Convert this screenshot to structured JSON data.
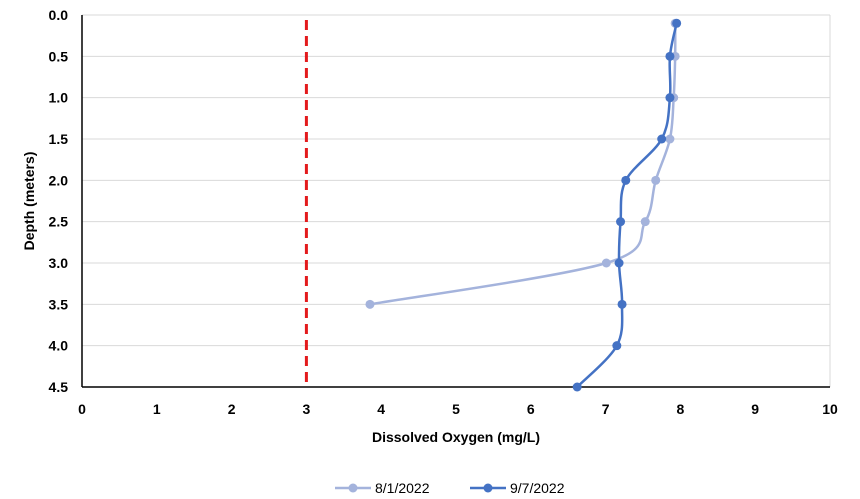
{
  "chart_data": {
    "type": "line",
    "xlabel": "Dissolved Oxygen (mg/L)",
    "ylabel": "Depth (meters)",
    "xlim": [
      0,
      10
    ],
    "ylim": [
      0,
      4.5
    ],
    "y_inverted": true,
    "x_ticks": [
      "0",
      "1",
      "2",
      "3",
      "4",
      "5",
      "6",
      "7",
      "8",
      "9",
      "10"
    ],
    "y_ticks": [
      "0.0",
      "0.5",
      "1.0",
      "1.5",
      "2.0",
      "2.5",
      "3.0",
      "3.5",
      "4.0",
      "4.5"
    ],
    "grid": "horizontal",
    "legend_position": "bottom",
    "reference_line": {
      "x": 3,
      "color": "#e31a1c",
      "style": "dashed"
    },
    "series": [
      {
        "name": "8/1/2022",
        "color": "#a4b3dc",
        "points": [
          {
            "x": 7.93,
            "y": 0.1
          },
          {
            "x": 7.93,
            "y": 0.5
          },
          {
            "x": 7.91,
            "y": 1.0
          },
          {
            "x": 7.86,
            "y": 1.5
          },
          {
            "x": 7.67,
            "y": 2.0
          },
          {
            "x": 7.53,
            "y": 2.5
          },
          {
            "x": 7.01,
            "y": 3.0
          },
          {
            "x": 3.85,
            "y": 3.5
          }
        ]
      },
      {
        "name": "9/7/2022",
        "color": "#4472c4",
        "points": [
          {
            "x": 7.95,
            "y": 0.1
          },
          {
            "x": 7.86,
            "y": 0.5
          },
          {
            "x": 7.86,
            "y": 1.0
          },
          {
            "x": 7.75,
            "y": 1.5
          },
          {
            "x": 7.27,
            "y": 2.0
          },
          {
            "x": 7.2,
            "y": 2.5
          },
          {
            "x": 7.18,
            "y": 3.0
          },
          {
            "x": 7.22,
            "y": 3.5
          },
          {
            "x": 7.15,
            "y": 4.0
          },
          {
            "x": 6.62,
            "y": 4.5
          }
        ]
      }
    ]
  }
}
